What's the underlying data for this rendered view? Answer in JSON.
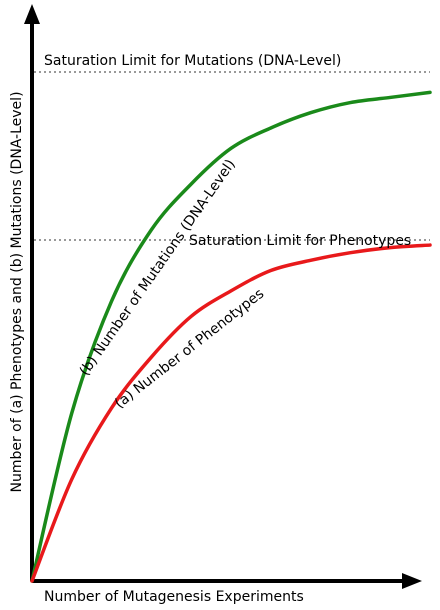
{
  "chart_data": {
    "type": "line",
    "title": "",
    "xlabel": "Number of Mutagenesis Experiments",
    "ylabel": "Number of (a) Phenotypes and (b) Mutations (DNA-Level)",
    "xlim": [
      0,
      1
    ],
    "ylim": [
      0,
      1
    ],
    "grid": false,
    "legend": "none",
    "series": [
      {
        "name": "(b) Number of Mutations (DNA-Level)",
        "color": "#1a8a1a",
        "x": [
          0,
          0.1,
          0.2,
          0.3,
          0.4,
          0.5,
          0.6,
          0.7,
          0.8,
          0.9,
          1.0
        ],
        "y": [
          0,
          0.33,
          0.55,
          0.69,
          0.78,
          0.85,
          0.89,
          0.92,
          0.94,
          0.95,
          0.96
        ]
      },
      {
        "name": "(a) Number of Phenotypes",
        "color": "#e8191b",
        "x": [
          0,
          0.1,
          0.2,
          0.3,
          0.4,
          0.5,
          0.6,
          0.7,
          0.8,
          0.9,
          1.0
        ],
        "y": [
          0,
          0.2,
          0.34,
          0.44,
          0.52,
          0.57,
          0.61,
          0.63,
          0.645,
          0.655,
          0.66
        ]
      }
    ],
    "reference_lines": [
      {
        "label": "Saturation Limit for Mutations (DNA-Level)",
        "y": 1.0,
        "style": "dotted",
        "color": "#999999"
      },
      {
        "label": "Saturation Limit for Phenotypes",
        "y": 0.67,
        "style": "dotted",
        "color": "#999999"
      }
    ]
  }
}
